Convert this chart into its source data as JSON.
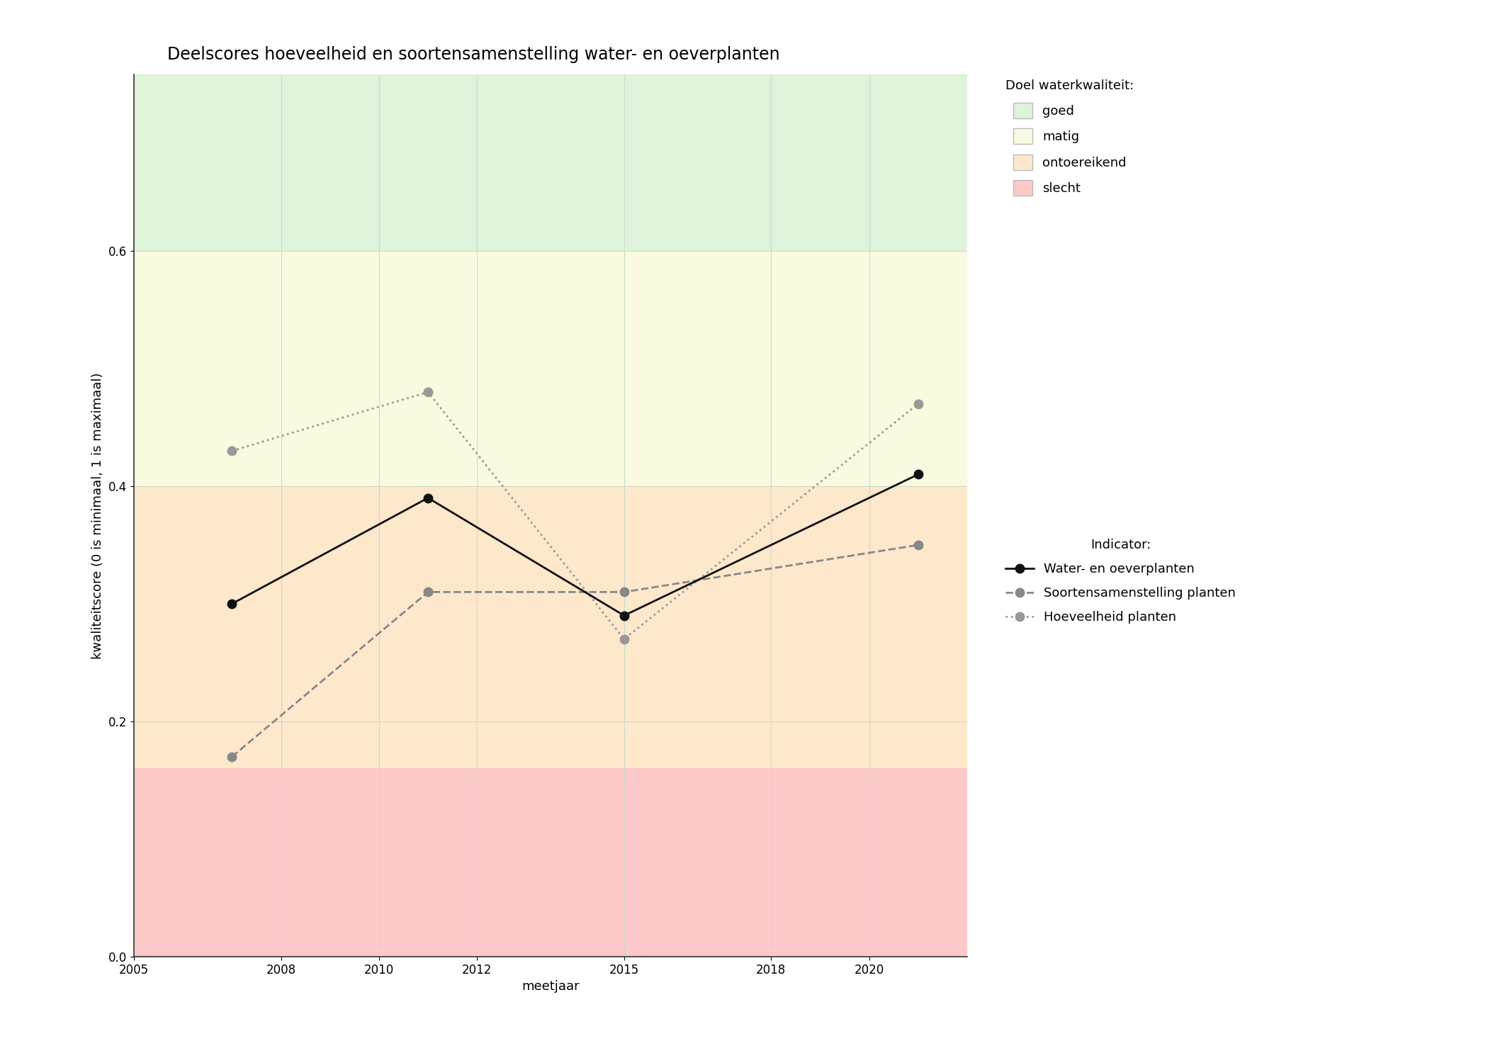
{
  "title": "Deelscores hoeveelheid en soortensamenstelling water- en oeverplanten",
  "xlabel": "meetjaar",
  "ylabel": "kwaliteitscore (0 is minimaal, 1 is maximaal)",
  "xlim": [
    2005,
    2022
  ],
  "ylim": [
    0.0,
    0.75
  ],
  "yticks": [
    0.0,
    0.2,
    0.4,
    0.6
  ],
  "xticks": [
    2005,
    2008,
    2010,
    2012,
    2015,
    2018,
    2020
  ],
  "bg_zones": [
    {
      "ymin": 0.0,
      "ymax": 0.16,
      "color": "#fcc8c8",
      "label": "slecht"
    },
    {
      "ymin": 0.16,
      "ymax": 0.4,
      "color": "#fde8cc",
      "label": "ontoereikend"
    },
    {
      "ymin": 0.4,
      "ymax": 0.6,
      "color": "#fafae0",
      "label": "matig"
    },
    {
      "ymin": 0.6,
      "ymax": 0.75,
      "color": "#dff2da",
      "label": "goed"
    }
  ],
  "line_water": {
    "x": [
      2007,
      2011,
      2015,
      2021
    ],
    "y": [
      0.3,
      0.39,
      0.29,
      0.41
    ],
    "color": "#111111",
    "linestyle": "-",
    "linewidth": 2.0,
    "marker": "o",
    "markersize": 9,
    "label": "Water- en oeverplanten"
  },
  "line_soorten": {
    "x": [
      2007,
      2011,
      2015,
      2021
    ],
    "y": [
      0.17,
      0.31,
      0.31,
      0.35
    ],
    "color": "#888888",
    "linestyle": "--",
    "linewidth": 2.0,
    "marker": "o",
    "markersize": 9,
    "label": "Soortensamenstelling planten"
  },
  "line_hoeveelheid": {
    "x": [
      2007,
      2011,
      2015,
      2021
    ],
    "y": [
      0.43,
      0.48,
      0.27,
      0.47
    ],
    "color": "#999999",
    "linestyle": ":",
    "linewidth": 2.0,
    "marker": "o",
    "markersize": 9,
    "label": "Hoeveelheid planten"
  },
  "legend_title_doel": "Doel waterkwaliteit:",
  "legend_title_indicator": "Indicator:",
  "legend_zone_colors": [
    "#dff2da",
    "#fafae0",
    "#fde8cc",
    "#fcc8c8"
  ],
  "legend_zone_labels": [
    "goed",
    "matig",
    "ontoereikend",
    "slecht"
  ],
  "background_color": "#ffffff",
  "grid_color": "#c8dcc8",
  "title_fontsize": 17,
  "label_fontsize": 13,
  "tick_fontsize": 12,
  "legend_fontsize": 13
}
